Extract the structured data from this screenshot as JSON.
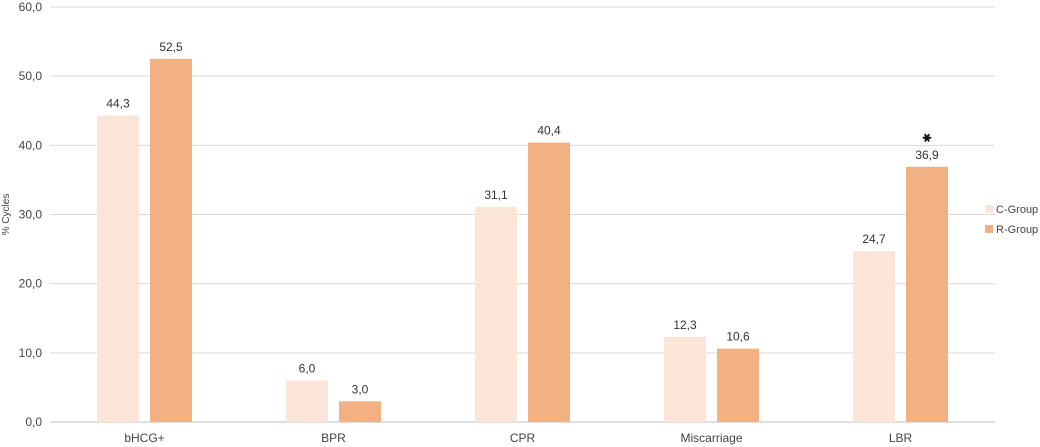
{
  "chart_data": {
    "type": "bar",
    "title": "",
    "xlabel": "",
    "ylabel": "% Cycles",
    "ylim": [
      0,
      60
    ],
    "yticks": [
      "0,0",
      "10,0",
      "20,0",
      "30,0",
      "40,0",
      "50,0",
      "60,0"
    ],
    "ytick_values": [
      0,
      10,
      20,
      30,
      40,
      50,
      60
    ],
    "categories": [
      "bHCG+",
      "BPR",
      "CPR",
      "Miscarriage",
      "LBR"
    ],
    "series": [
      {
        "name": "C-Group",
        "color": "#fbe5d8",
        "values": [
          44.3,
          6.0,
          31.1,
          12.3,
          24.7
        ],
        "labels": [
          "44,3",
          "6,0",
          "31,1",
          "12,3",
          "24,7"
        ]
      },
      {
        "name": "R-Group",
        "color": "#f2b183",
        "values": [
          52.5,
          3.0,
          40.4,
          10.6,
          36.9
        ],
        "labels": [
          "52,5",
          "3,0",
          "40,4",
          "10,6",
          "36,9"
        ]
      }
    ],
    "annotations": [
      {
        "category": "LBR",
        "series": "R-Group",
        "marker": "asterisk"
      }
    ],
    "grid": true,
    "legend_position": "right"
  }
}
